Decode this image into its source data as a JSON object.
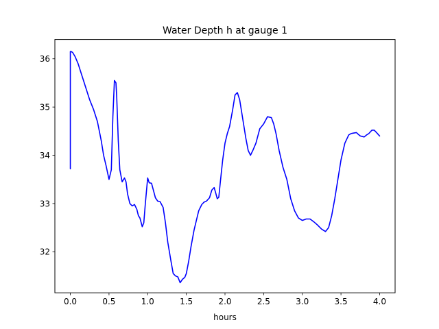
{
  "chart_data": {
    "type": "line",
    "title": "Water Depth h at gauge 1",
    "xlabel": "hours",
    "ylabel": "",
    "xlim": [
      -0.2,
      4.2
    ],
    "ylim": [
      31.15,
      36.4
    ],
    "xticks": [
      0.0,
      0.5,
      1.0,
      1.5,
      2.0,
      2.5,
      3.0,
      3.5,
      4.0
    ],
    "xtick_labels": [
      "0.0",
      "0.5",
      "1.0",
      "1.5",
      "2.0",
      "2.5",
      "3.0",
      "3.5",
      "4.0"
    ],
    "yticks": [
      32,
      33,
      34,
      35,
      36
    ],
    "ytick_labels": [
      "32",
      "33",
      "34",
      "35",
      "36"
    ],
    "grid": false,
    "colors": {
      "series": "#0000ff",
      "axes": "#000000",
      "background": "#ffffff"
    },
    "series": [
      {
        "x": [
          0.0,
          0.0,
          0.01,
          0.03,
          0.06,
          0.1,
          0.15,
          0.2,
          0.25,
          0.3,
          0.35,
          0.4,
          0.43,
          0.46,
          0.5,
          0.53,
          0.55,
          0.57,
          0.59,
          0.6,
          0.62,
          0.64,
          0.67,
          0.7,
          0.72,
          0.74,
          0.77,
          0.8,
          0.83,
          0.86,
          0.88,
          0.9,
          0.93,
          0.95,
          0.97,
          1.0,
          1.02,
          1.05,
          1.07,
          1.1,
          1.13,
          1.16,
          1.2,
          1.23,
          1.26,
          1.3,
          1.33,
          1.36,
          1.39,
          1.42,
          1.45,
          1.48,
          1.5,
          1.53,
          1.56,
          1.6,
          1.63,
          1.66,
          1.7,
          1.73,
          1.76,
          1.8,
          1.83,
          1.86,
          1.88,
          1.9,
          1.92,
          1.94,
          1.97,
          2.0,
          2.03,
          2.06,
          2.1,
          2.13,
          2.16,
          2.19,
          2.21,
          2.24,
          2.27,
          2.3,
          2.33,
          2.36,
          2.4,
          2.45,
          2.5,
          2.55,
          2.6,
          2.63,
          2.66,
          2.7,
          2.75,
          2.8,
          2.85,
          2.9,
          2.95,
          3.0,
          3.05,
          3.1,
          3.15,
          3.2,
          3.25,
          3.3,
          3.34,
          3.38,
          3.42,
          3.46,
          3.5,
          3.55,
          3.6,
          3.63,
          3.66,
          3.7,
          3.72,
          3.75,
          3.8,
          3.83,
          3.86,
          3.9,
          3.93,
          3.96,
          4.0
        ],
        "y": [
          33.72,
          36.15,
          36.15,
          36.13,
          36.05,
          35.9,
          35.65,
          35.4,
          35.15,
          34.95,
          34.7,
          34.3,
          34.0,
          33.8,
          33.5,
          33.7,
          34.8,
          35.55,
          35.5,
          35.2,
          34.3,
          33.7,
          33.45,
          33.53,
          33.45,
          33.2,
          33.0,
          32.95,
          32.98,
          32.88,
          32.75,
          32.7,
          32.52,
          32.6,
          33.0,
          33.53,
          33.43,
          33.42,
          33.3,
          33.12,
          33.05,
          33.04,
          32.92,
          32.6,
          32.2,
          31.82,
          31.55,
          31.5,
          31.48,
          31.36,
          31.43,
          31.47,
          31.55,
          31.8,
          32.1,
          32.45,
          32.65,
          32.85,
          32.98,
          33.03,
          33.05,
          33.12,
          33.28,
          33.33,
          33.22,
          33.1,
          33.13,
          33.45,
          33.9,
          34.25,
          34.45,
          34.6,
          34.95,
          35.25,
          35.3,
          35.15,
          34.95,
          34.65,
          34.35,
          34.1,
          34.0,
          34.1,
          34.25,
          34.55,
          34.65,
          34.8,
          34.78,
          34.65,
          34.45,
          34.1,
          33.75,
          33.5,
          33.1,
          32.85,
          32.7,
          32.65,
          32.68,
          32.68,
          32.62,
          32.55,
          32.47,
          32.42,
          32.5,
          32.75,
          33.1,
          33.5,
          33.9,
          34.25,
          34.42,
          34.45,
          34.46,
          34.47,
          34.44,
          34.4,
          34.38,
          34.42,
          34.45,
          34.52,
          34.52,
          34.47,
          34.4
        ]
      }
    ]
  }
}
